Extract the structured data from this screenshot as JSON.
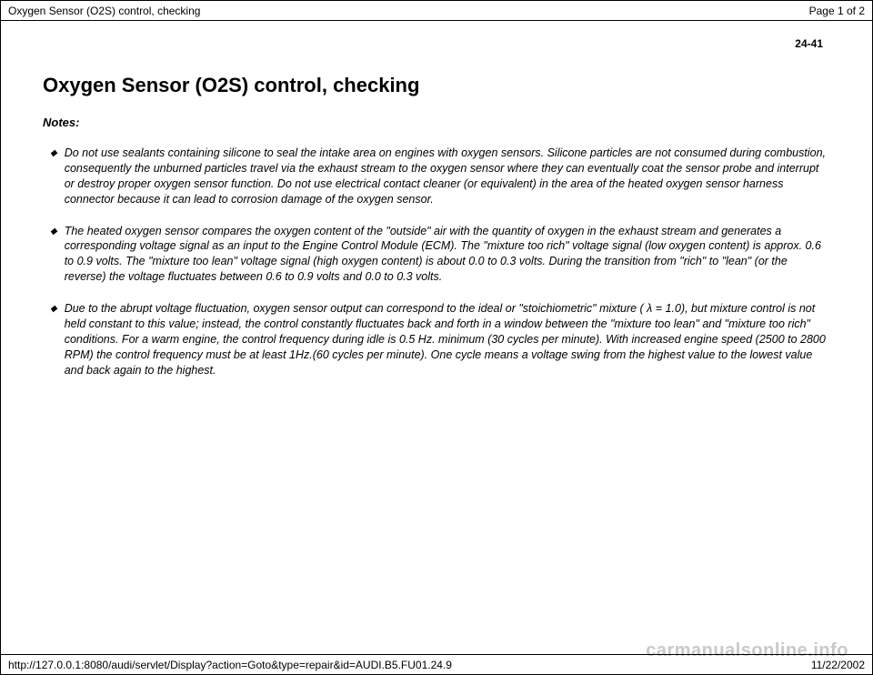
{
  "header": {
    "title": "Oxygen Sensor (O2S) control, checking",
    "page_indicator": "Page 1 of 2"
  },
  "content": {
    "section_number": "24-41",
    "heading": "Oxygen Sensor (O2S) control, checking",
    "notes_label": "Notes:",
    "notes": [
      "Do not use sealants containing silicone to seal the intake area on engines with oxygen sensors. Silicone particles are not consumed during combustion, consequently the unburned particles travel via the exhaust stream to the oxygen sensor where they can eventually coat the sensor probe and interrupt or destroy proper oxygen sensor function. Do not use electrical contact cleaner (or equivalent) in the area of the heated oxygen sensor harness connector because it can lead to corrosion damage of the oxygen sensor.",
      "The heated oxygen sensor compares the oxygen content of the \"outside\" air with the quantity of oxygen in the exhaust stream and generates a corresponding voltage signal as an input to the Engine Control Module (ECM). The \"mixture too rich\" voltage signal (low oxygen content) is approx. 0.6 to 0.9 volts. The \"mixture too lean\" voltage signal (high oxygen content) is about 0.0 to 0.3 volts. During the transition from \"rich\" to \"lean\" (or the reverse) the voltage fluctuates between 0.6 to 0.9 volts and 0.0 to 0.3 volts.",
      "Due to the abrupt voltage fluctuation, oxygen sensor output can correspond to the ideal or \"stoichiometric\" mixture ( λ = 1.0), but mixture control is not held constant to this value; instead, the control constantly fluctuates back and forth in a window between the \"mixture too lean\" and \"mixture too rich\" conditions. For a warm engine, the control frequency during idle is 0.5 Hz. minimum (30 cycles per minute). With increased engine speed (2500 to 2800 RPM) the control frequency must be at least 1Hz.(60 cycles per minute). One cycle means a voltage swing from the highest value to the lowest value and back again to the highest."
    ]
  },
  "footer": {
    "url": "http://127.0.0.1:8080/audi/servlet/Display?action=Goto&type=repair&id=AUDI.B5.FU01.24.9",
    "date": "11/22/2002"
  },
  "watermark": "carmanualsonline.info",
  "styles": {
    "background_color": "#ffffff",
    "border_color": "#000000",
    "text_color": "#000000",
    "watermark_color": "#c9c9c9",
    "heading_fontsize": 22,
    "body_fontsize": 12.5,
    "header_fontsize": 12
  }
}
